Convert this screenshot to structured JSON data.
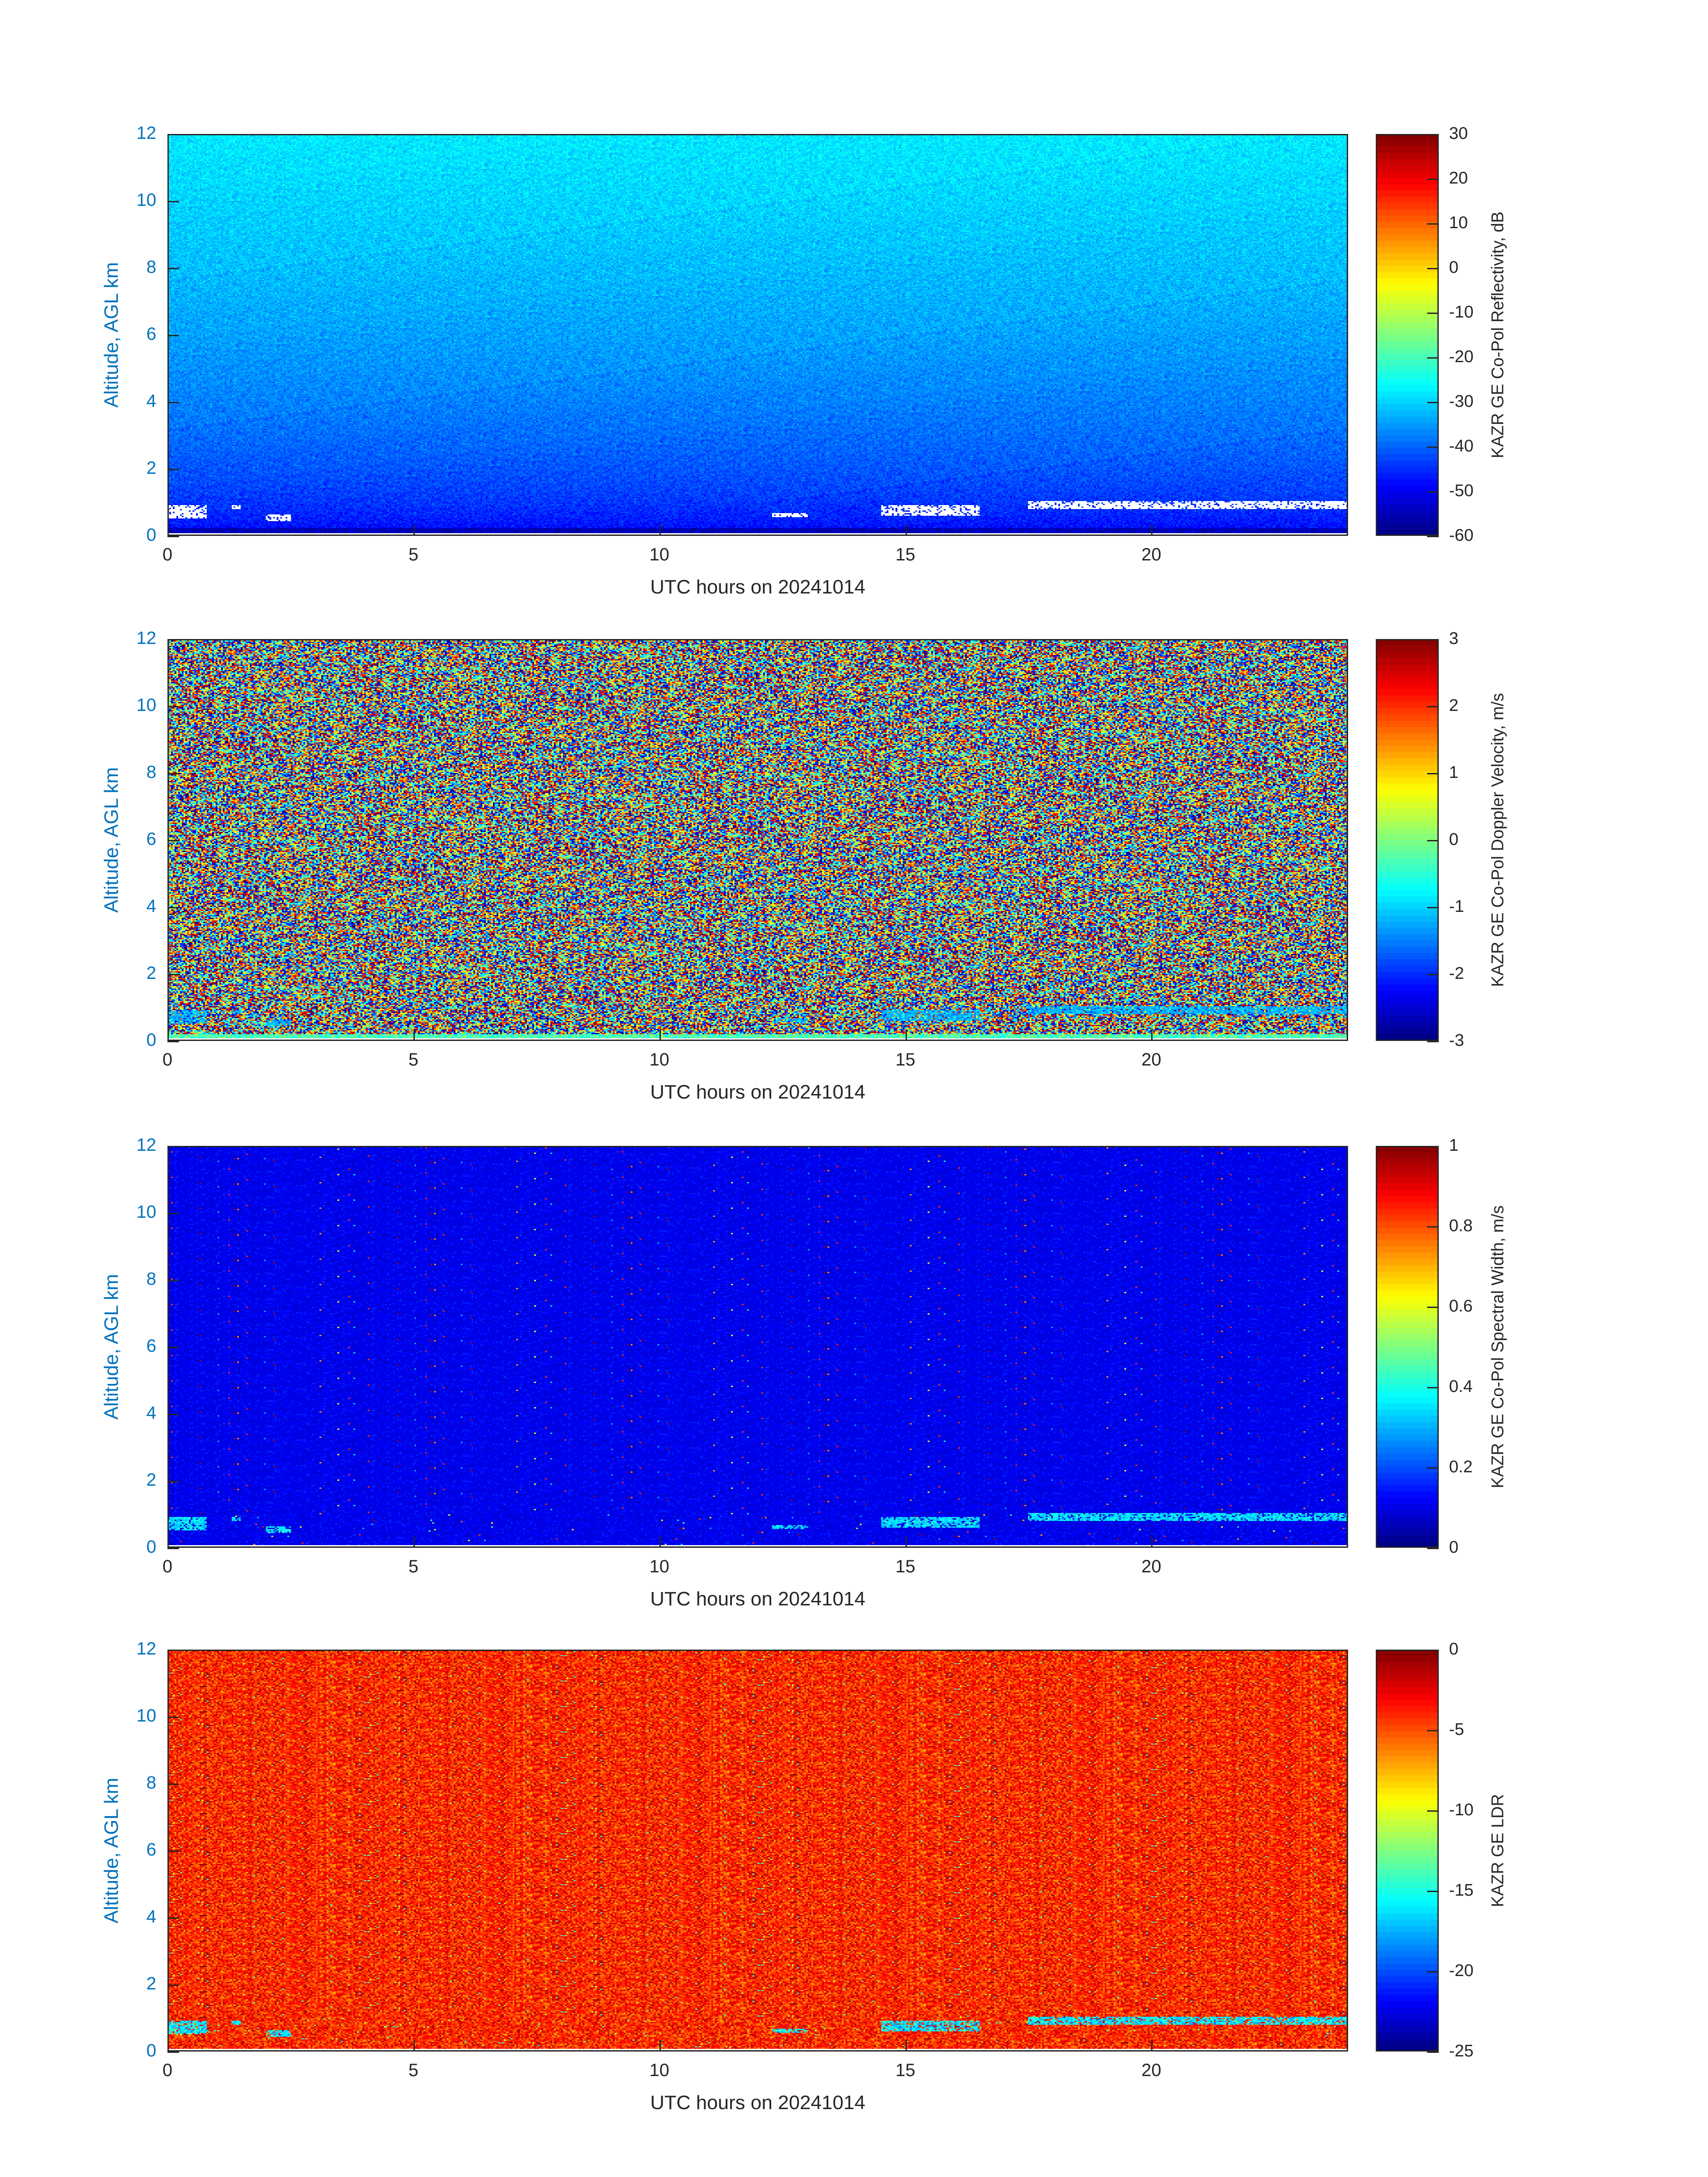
{
  "chart_data": [
    {
      "type": "heatmap",
      "xlabel": "UTC hours on 20241014",
      "ylabel": "Altitude, AGL km",
      "xlim": [
        0,
        24
      ],
      "ylim": [
        0,
        12
      ],
      "xticks": [
        "0",
        "5",
        "10",
        "15",
        "20"
      ],
      "yticks": [
        "0",
        "2",
        "4",
        "6",
        "8",
        "10",
        "12"
      ],
      "colormap": "jet",
      "colorbar": {
        "label": "KAZR GE Co-Pol Reflectivity, dB",
        "clim": [
          -60,
          30
        ],
        "ticks": [
          "-60",
          "-50",
          "-40",
          "-30",
          "-20",
          "-10",
          "0",
          "10",
          "20",
          "30"
        ]
      }
    },
    {
      "type": "heatmap",
      "xlabel": "UTC hours on 20241014",
      "ylabel": "Altitude, AGL km",
      "xlim": [
        0,
        24
      ],
      "ylim": [
        0,
        12
      ],
      "xticks": [
        "0",
        "5",
        "10",
        "15",
        "20"
      ],
      "yticks": [
        "0",
        "2",
        "4",
        "6",
        "8",
        "10",
        "12"
      ],
      "colormap": "jet",
      "colorbar": {
        "label": "KAZR GE Co-Pol Doppler Velocity, m/s",
        "clim": [
          -3,
          3
        ],
        "ticks": [
          "-3",
          "-2",
          "-1",
          "0",
          "1",
          "2",
          "3"
        ]
      }
    },
    {
      "type": "heatmap",
      "xlabel": "UTC hours on 20241014",
      "ylabel": "Altitude, AGL km",
      "xlim": [
        0,
        24
      ],
      "ylim": [
        0,
        12
      ],
      "xticks": [
        "0",
        "5",
        "10",
        "15",
        "20"
      ],
      "yticks": [
        "0",
        "2",
        "4",
        "6",
        "8",
        "10",
        "12"
      ],
      "colormap": "jet",
      "colorbar": {
        "label": "KAZR GE Co-Pol Spectral Width, m/s",
        "clim": [
          0,
          1
        ],
        "ticks": [
          "0",
          "0.2",
          "0.4",
          "0.6",
          "0.8",
          "1"
        ]
      }
    },
    {
      "type": "heatmap",
      "xlabel": "UTC hours on 20241014",
      "ylabel": "Altitude, AGL km",
      "xlim": [
        0,
        24
      ],
      "ylim": [
        0,
        12
      ],
      "xticks": [
        "0",
        "5",
        "10",
        "15",
        "20"
      ],
      "yticks": [
        "0",
        "2",
        "4",
        "6",
        "8",
        "10",
        "12"
      ],
      "colormap": "jet",
      "colorbar": {
        "label": "KAZR GE LDR",
        "clim": [
          -25,
          0
        ],
        "ticks": [
          "-25",
          "-20",
          "-15",
          "-10",
          "-5",
          "0"
        ]
      }
    }
  ]
}
